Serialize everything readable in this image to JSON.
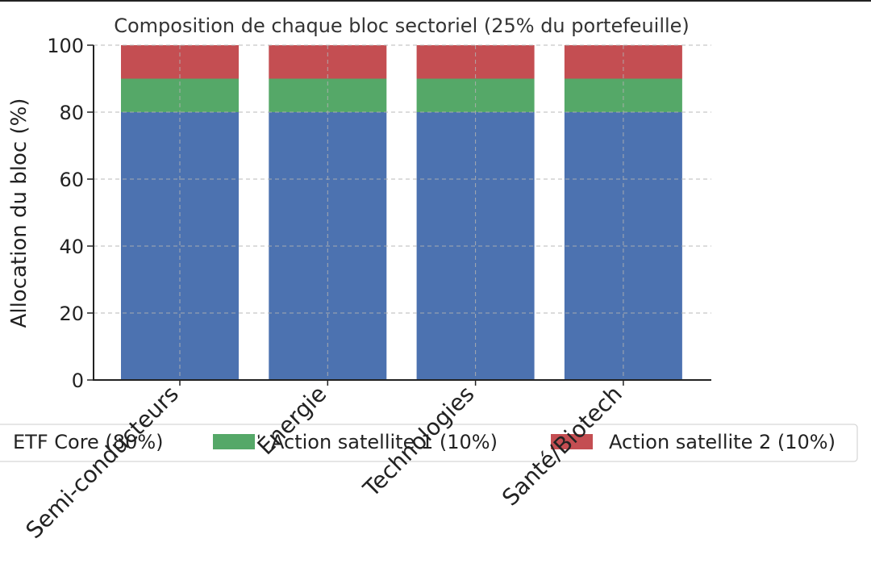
{
  "chart_data": {
    "type": "bar",
    "stacked": true,
    "title": "Composition de chaque bloc sectoriel (25% du portefeuille)",
    "xlabel": "",
    "ylabel": "Allocation du bloc (%)",
    "ylim": [
      0,
      100
    ],
    "yticks": [
      "0",
      "20",
      "40",
      "60",
      "80",
      "100"
    ],
    "categories": [
      "Semi-conducteurs",
      "Énergie",
      "Technologies",
      "Santé/Biotech"
    ],
    "series": [
      {
        "name": "ETF Core (80%)",
        "color": "#4C72B0",
        "values": [
          80,
          80,
          80,
          80
        ]
      },
      {
        "name": "Action satellite 1 (10%)",
        "color": "#55A868",
        "values": [
          10,
          10,
          10,
          10
        ]
      },
      {
        "name": "Action satellite 2 (10%)",
        "color": "#C44E52",
        "values": [
          10,
          10,
          10,
          10
        ]
      }
    ],
    "grid": true,
    "legend_position": "bottom"
  }
}
